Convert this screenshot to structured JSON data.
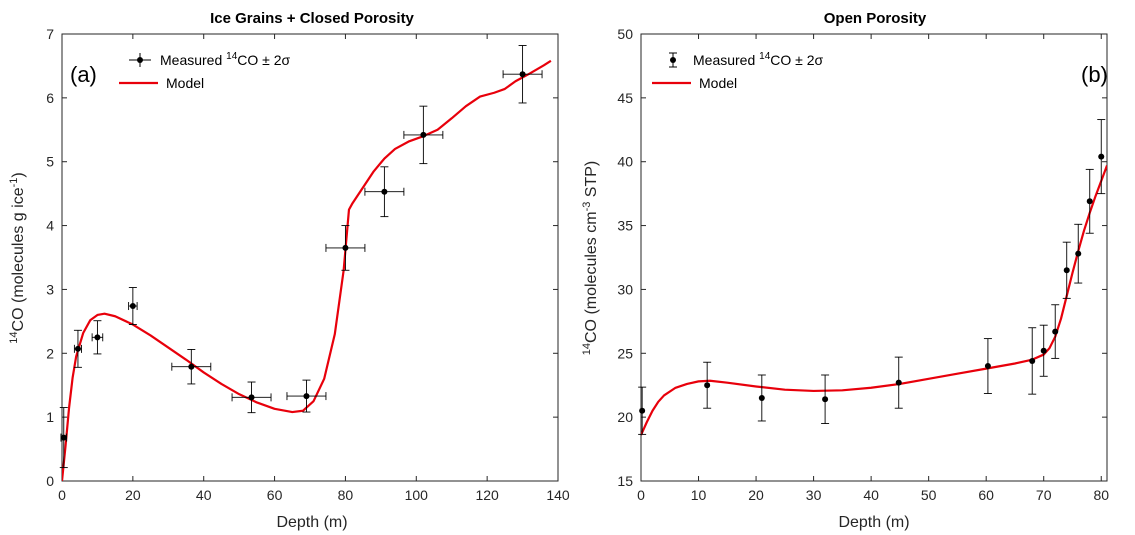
{
  "chart_data": [
    {
      "type": "line",
      "title": "Ice Grains + Closed Porosity",
      "panel_label": "(a)",
      "xlabel": "Depth (m)",
      "ylabel": "14CO (molecules g ice-1)",
      "ylabel_parts": {
        "sup": "14",
        "pre": "CO (molecules g ice",
        "exp": "-1",
        "post": ")"
      },
      "xlim": [
        0,
        140
      ],
      "ylim": [
        0,
        7
      ],
      "xticks": [
        0,
        20,
        40,
        60,
        80,
        100,
        120,
        140
      ],
      "yticks": [
        0,
        1,
        2,
        3,
        4,
        5,
        6,
        7
      ],
      "grid": false,
      "legend_position": "top-left",
      "legend": {
        "measured": {
          "sup": "14",
          "pre": "Measured ",
          "post": "CO ± 2σ"
        },
        "model": "Model"
      },
      "colors": {
        "model": "#e8000b",
        "points": "#000000",
        "errorbars": "#000000"
      },
      "measured": [
        {
          "x": 0.5,
          "y": 0.68,
          "xerr": 0.8,
          "yerr": 0.47
        },
        {
          "x": 4.5,
          "y": 2.07,
          "xerr": 1.0,
          "yerr": 0.29
        },
        {
          "x": 10,
          "y": 2.25,
          "xerr": 1.5,
          "yerr": 0.26
        },
        {
          "x": 20,
          "y": 2.74,
          "xerr": 1.2,
          "yerr": 0.29
        },
        {
          "x": 36.5,
          "y": 1.79,
          "xerr": 5.5,
          "yerr": 0.27
        },
        {
          "x": 53.5,
          "y": 1.31,
          "xerr": 5.5,
          "yerr": 0.24
        },
        {
          "x": 69,
          "y": 1.33,
          "xerr": 5.5,
          "yerr": 0.25
        },
        {
          "x": 80,
          "y": 3.65,
          "xerr": 5.5,
          "yerr": 0.35
        },
        {
          "x": 91,
          "y": 4.53,
          "xerr": 5.5,
          "yerr": 0.39
        },
        {
          "x": 102,
          "y": 5.42,
          "xerr": 5.5,
          "yerr": 0.45
        },
        {
          "x": 130,
          "y": 6.37,
          "xerr": 5.5,
          "yerr": 0.45
        }
      ],
      "model": [
        [
          0,
          0.0
        ],
        [
          1,
          0.55
        ],
        [
          2,
          1.15
        ],
        [
          3,
          1.62
        ],
        [
          4,
          1.95
        ],
        [
          6,
          2.32
        ],
        [
          8,
          2.52
        ],
        [
          10,
          2.6
        ],
        [
          12,
          2.62
        ],
        [
          15,
          2.58
        ],
        [
          20,
          2.45
        ],
        [
          25,
          2.28
        ],
        [
          30,
          2.09
        ],
        [
          35,
          1.9
        ],
        [
          40,
          1.7
        ],
        [
          45,
          1.52
        ],
        [
          50,
          1.36
        ],
        [
          55,
          1.23
        ],
        [
          60,
          1.13
        ],
        [
          65,
          1.08
        ],
        [
          68,
          1.1
        ],
        [
          71,
          1.25
        ],
        [
          74,
          1.6
        ],
        [
          77,
          2.3
        ],
        [
          79.5,
          3.3
        ],
        [
          81,
          4.25
        ],
        [
          82,
          4.35
        ],
        [
          85,
          4.6
        ],
        [
          88,
          4.85
        ],
        [
          91,
          5.05
        ],
        [
          94,
          5.2
        ],
        [
          98,
          5.32
        ],
        [
          102,
          5.4
        ],
        [
          106,
          5.5
        ],
        [
          110,
          5.68
        ],
        [
          114,
          5.87
        ],
        [
          118,
          6.02
        ],
        [
          122,
          6.08
        ],
        [
          125,
          6.14
        ],
        [
          128,
          6.26
        ],
        [
          132,
          6.38
        ],
        [
          136,
          6.51
        ],
        [
          138,
          6.58
        ]
      ]
    },
    {
      "type": "line",
      "title": "Open Porosity",
      "panel_label": "(b)",
      "xlabel": "Depth (m)",
      "ylabel": "14CO (molecules cm-3 STP)",
      "ylabel_parts": {
        "sup": "14",
        "pre": "CO (molecules cm",
        "exp": "-3",
        "post": " STP)"
      },
      "xlim": [
        0,
        81
      ],
      "ylim": [
        15,
        50
      ],
      "xticks": [
        0,
        10,
        20,
        30,
        40,
        50,
        60,
        70,
        80
      ],
      "yticks": [
        15,
        20,
        25,
        30,
        35,
        40,
        45,
        50
      ],
      "grid": false,
      "legend_position": "top-left",
      "legend": {
        "measured": {
          "sup": "14",
          "pre": "Measured ",
          "post": "CO ± 2σ"
        },
        "model": "Model"
      },
      "colors": {
        "model": "#e8000b",
        "points": "#000000",
        "errorbars": "#000000"
      },
      "measured": [
        {
          "x": 0.2,
          "y": 20.5,
          "yerr": 1.85
        },
        {
          "x": 11.5,
          "y": 22.5,
          "yerr": 1.8
        },
        {
          "x": 21,
          "y": 21.5,
          "yerr": 1.8
        },
        {
          "x": 32,
          "y": 21.4,
          "yerr": 1.9
        },
        {
          "x": 44.8,
          "y": 22.7,
          "yerr": 2.0
        },
        {
          "x": 60.3,
          "y": 24.0,
          "yerr": 2.15
        },
        {
          "x": 68,
          "y": 24.4,
          "yerr": 2.6
        },
        {
          "x": 70,
          "y": 25.2,
          "yerr": 2.0
        },
        {
          "x": 72,
          "y": 26.7,
          "yerr": 2.1
        },
        {
          "x": 74,
          "y": 31.5,
          "yerr": 2.2
        },
        {
          "x": 76,
          "y": 32.8,
          "yerr": 2.3
        },
        {
          "x": 78,
          "y": 36.9,
          "yerr": 2.5
        },
        {
          "x": 80,
          "y": 40.4,
          "yerr": 2.9
        }
      ],
      "model": [
        [
          0,
          18.6
        ],
        [
          1,
          19.6
        ],
        [
          2,
          20.5
        ],
        [
          3,
          21.2
        ],
        [
          4,
          21.7
        ],
        [
          6,
          22.3
        ],
        [
          8,
          22.6
        ],
        [
          10,
          22.8
        ],
        [
          12,
          22.85
        ],
        [
          15,
          22.7
        ],
        [
          20,
          22.4
        ],
        [
          25,
          22.15
        ],
        [
          30,
          22.05
        ],
        [
          35,
          22.1
        ],
        [
          40,
          22.3
        ],
        [
          45,
          22.6
        ],
        [
          50,
          23.0
        ],
        [
          55,
          23.4
        ],
        [
          60,
          23.8
        ],
        [
          65,
          24.2
        ],
        [
          68,
          24.5
        ],
        [
          70,
          24.9
        ],
        [
          71,
          25.4
        ],
        [
          72,
          26.3
        ],
        [
          73,
          27.7
        ],
        [
          74,
          29.5
        ],
        [
          75,
          31.3
        ],
        [
          76,
          33.0
        ],
        [
          77,
          34.6
        ],
        [
          78,
          36.0
        ],
        [
          79,
          37.3
        ],
        [
          80,
          38.5
        ],
        [
          81,
          39.7
        ]
      ]
    }
  ]
}
